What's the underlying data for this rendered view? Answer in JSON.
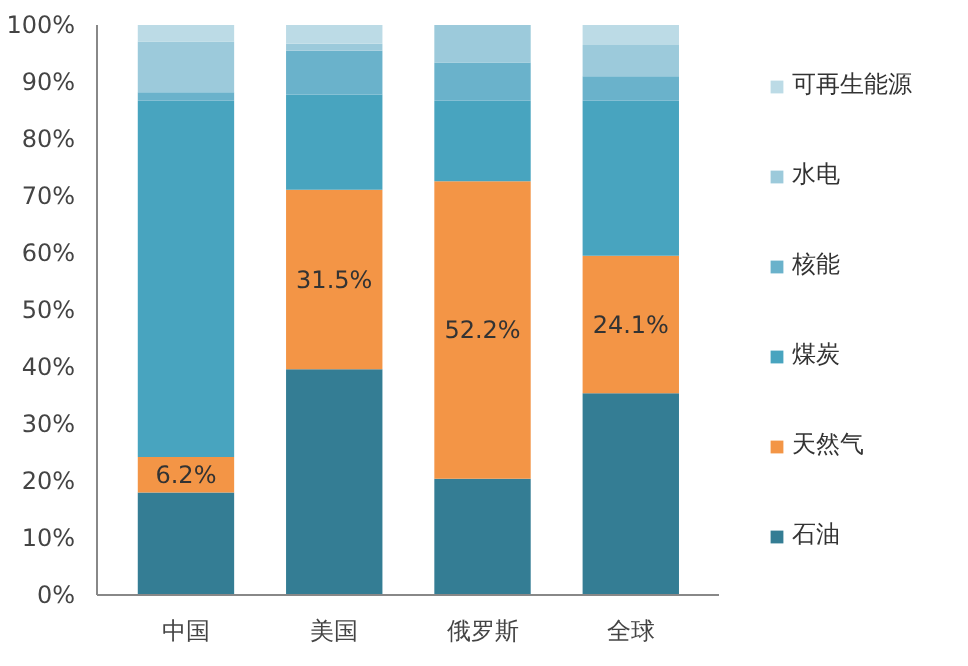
{
  "chart_data": {
    "type": "bar",
    "stacked": true,
    "categories": [
      "中国",
      "美国",
      "俄罗斯",
      "全球"
    ],
    "series": [
      {
        "name": "石油",
        "color": "#347d94",
        "values": [
          18.0,
          39.6,
          20.4,
          35.4
        ]
      },
      {
        "name": "天然气",
        "color": "#f39546",
        "values": [
          6.2,
          31.5,
          52.2,
          24.1
        ],
        "value_labels": [
          "6.2%",
          "31.5%",
          "52.2%",
          "24.1%"
        ]
      },
      {
        "name": "煤炭",
        "color": "#48a4bf",
        "values": [
          62.5,
          16.7,
          14.1,
          27.2
        ]
      },
      {
        "name": "核能",
        "color": "#6ab2cb",
        "values": [
          1.5,
          7.7,
          6.7,
          4.3
        ]
      },
      {
        "name": "水电",
        "color": "#9ccadb",
        "values": [
          8.9,
          1.2,
          6.6,
          5.5
        ]
      },
      {
        "name": "可再生能源",
        "color": "#bcdbe6",
        "values": [
          2.9,
          3.3,
          null,
          3.5
        ]
      }
    ],
    "ylim": [
      0,
      100
    ],
    "yticks": [
      {
        "value": 0,
        "label": "0%"
      },
      {
        "value": 10,
        "label": "10%"
      },
      {
        "value": 20,
        "label": "20%"
      },
      {
        "value": 30,
        "label": "30%"
      },
      {
        "value": 40,
        "label": "40%"
      },
      {
        "value": 50,
        "label": "50%"
      },
      {
        "value": 60,
        "label": "60%"
      },
      {
        "value": 70,
        "label": "70%"
      },
      {
        "value": 80,
        "label": "80%"
      },
      {
        "value": 90,
        "label": "90%"
      },
      {
        "value": 100,
        "label": "100%"
      }
    ],
    "grid": false,
    "legend": "right"
  }
}
